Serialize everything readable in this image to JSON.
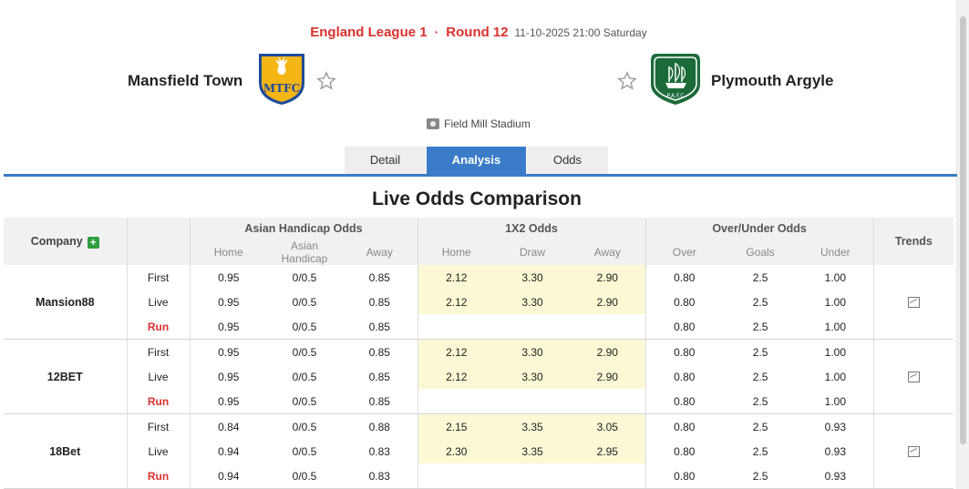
{
  "match": {
    "league": "England League 1",
    "separator": "·",
    "round": "Round 12",
    "datetime": "11-10-2025 21:00 Saturday",
    "home_team": "Mansfield Town",
    "away_team": "Plymouth Argyle",
    "stadium": "Field Mill Stadium"
  },
  "logos": {
    "home_text": "MTFC",
    "away_text": "P.A.F.C",
    "home_colors": [
      "#f5b615",
      "#1f4b9a"
    ],
    "away_color": "#1b6b3a"
  },
  "tabs": [
    {
      "label": "Detail",
      "active": false
    },
    {
      "label": "Analysis",
      "active": true
    },
    {
      "label": "Odds",
      "active": false
    }
  ],
  "section_title": "Live Odds Comparison",
  "table": {
    "company_header": "Company",
    "group_headers": [
      "Asian Handicap Odds",
      "1X2 Odds",
      "Over/Under Odds"
    ],
    "trends_header": "Trends",
    "sub_headers": [
      "Home",
      "Asian Handicap",
      "Away",
      "Home",
      "Draw",
      "Away",
      "Over",
      "Goals",
      "Under"
    ],
    "companies": [
      {
        "name": "Mansion88",
        "rows": [
          {
            "type": "First",
            "ah": [
              "0.95",
              "0/0.5",
              "0.85"
            ],
            "x12": [
              "2.12",
              "3.30",
              "2.90"
            ],
            "ou": [
              "0.80",
              "2.5",
              "1.00"
            ]
          },
          {
            "type": "Live",
            "ah": [
              "0.95",
              "0/0.5",
              "0.85"
            ],
            "x12": [
              "2.12",
              "3.30",
              "2.90"
            ],
            "ou": [
              "0.80",
              "2.5",
              "1.00"
            ]
          },
          {
            "type": "Run",
            "ah": [
              "0.95",
              "0/0.5",
              "0.85"
            ],
            "x12": [
              "",
              "",
              ""
            ],
            "ou": [
              "0.80",
              "2.5",
              "1.00"
            ]
          }
        ]
      },
      {
        "name": "12BET",
        "rows": [
          {
            "type": "First",
            "ah": [
              "0.95",
              "0/0.5",
              "0.85"
            ],
            "x12": [
              "2.12",
              "3.30",
              "2.90"
            ],
            "ou": [
              "0.80",
              "2.5",
              "1.00"
            ]
          },
          {
            "type": "Live",
            "ah": [
              "0.95",
              "0/0.5",
              "0.85"
            ],
            "x12": [
              "2.12",
              "3.30",
              "2.90"
            ],
            "ou": [
              "0.80",
              "2.5",
              "1.00"
            ]
          },
          {
            "type": "Run",
            "ah": [
              "0.95",
              "0/0.5",
              "0.85"
            ],
            "x12": [
              "",
              "",
              ""
            ],
            "ou": [
              "0.80",
              "2.5",
              "1.00"
            ]
          }
        ]
      },
      {
        "name": "18Bet",
        "rows": [
          {
            "type": "First",
            "ah": [
              "0.84",
              "0/0.5",
              "0.88"
            ],
            "x12": [
              "2.15",
              "3.35",
              "3.05"
            ],
            "ou": [
              "0.80",
              "2.5",
              "0.93"
            ]
          },
          {
            "type": "Live",
            "ah": [
              "0.94",
              "0/0.5",
              "0.83"
            ],
            "x12": [
              "2.30",
              "3.35",
              "2.95"
            ],
            "ou": [
              "0.80",
              "2.5",
              "0.93"
            ]
          },
          {
            "type": "Run",
            "ah": [
              "0.94",
              "0/0.5",
              "0.83"
            ],
            "x12": [
              "",
              "",
              ""
            ],
            "ou": [
              "0.80",
              "2.5",
              "0.93"
            ]
          }
        ]
      }
    ]
  },
  "colors": {
    "accent": "#d9322e",
    "tab_active": "#3a7cc8",
    "odds_highlight": "#fbf8d5",
    "add_button": "#2e9e3e"
  },
  "icons": {
    "favorite": "star-outline-icon",
    "stadium": "stadium-icon",
    "trend": "line-chart-icon",
    "add": "plus-icon"
  }
}
